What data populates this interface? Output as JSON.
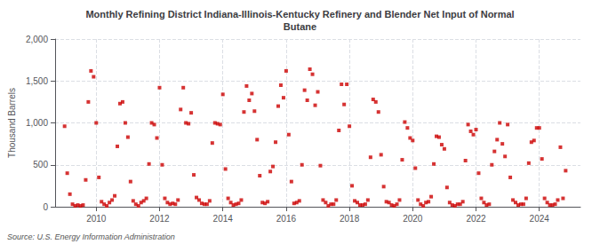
{
  "chart_data": {
    "type": "scatter",
    "title": "Monthly Refining District Indiana-Illinois-Kentucky Refinery and Blender Net Input of Normal\nButane",
    "ylabel": "Thousand Barrels",
    "annotations": [
      "Source: U.S. Energy Information Administration"
    ],
    "color": "#cc0000",
    "marker": "square",
    "grid": true,
    "xlim": [
      2008.7,
      2025.3
    ],
    "xticks": [
      2010,
      2012,
      2014,
      2016,
      2018,
      2020,
      2022,
      2024
    ],
    "ylim": [
      0,
      2000
    ],
    "yticks": [
      0,
      500,
      {
        "value": 1000,
        "label": "1,000"
      },
      {
        "value": 1500,
        "label": "1,500"
      },
      {
        "value": 2000,
        "label": "2,000"
      }
    ],
    "x": [
      2009.0,
      2009.083,
      2009.167,
      2009.25,
      2009.333,
      2009.417,
      2009.5,
      2009.583,
      2009.667,
      2009.75,
      2009.833,
      2009.917,
      2010.0,
      2010.083,
      2010.167,
      2010.25,
      2010.333,
      2010.417,
      2010.5,
      2010.583,
      2010.667,
      2010.75,
      2010.833,
      2010.917,
      2011.0,
      2011.083,
      2011.167,
      2011.25,
      2011.333,
      2011.417,
      2011.5,
      2011.583,
      2011.667,
      2011.75,
      2011.833,
      2011.917,
      2012.0,
      2012.083,
      2012.167,
      2012.25,
      2012.333,
      2012.417,
      2012.5,
      2012.583,
      2012.667,
      2012.75,
      2012.833,
      2012.917,
      2013.0,
      2013.083,
      2013.167,
      2013.25,
      2013.333,
      2013.417,
      2013.5,
      2013.583,
      2013.667,
      2013.75,
      2013.833,
      2013.917,
      2014.0,
      2014.083,
      2014.167,
      2014.25,
      2014.333,
      2014.417,
      2014.5,
      2014.583,
      2014.667,
      2014.75,
      2014.833,
      2014.917,
      2015.0,
      2015.083,
      2015.167,
      2015.25,
      2015.333,
      2015.417,
      2015.5,
      2015.583,
      2015.667,
      2015.75,
      2015.833,
      2015.917,
      2016.0,
      2016.083,
      2016.167,
      2016.25,
      2016.333,
      2016.417,
      2016.5,
      2016.583,
      2016.667,
      2016.75,
      2016.833,
      2016.917,
      2017.0,
      2017.083,
      2017.167,
      2017.25,
      2017.333,
      2017.417,
      2017.5,
      2017.583,
      2017.667,
      2017.75,
      2017.833,
      2017.917,
      2018.0,
      2018.083,
      2018.167,
      2018.25,
      2018.333,
      2018.417,
      2018.5,
      2018.583,
      2018.667,
      2018.75,
      2018.833,
      2018.917,
      2019.0,
      2019.083,
      2019.167,
      2019.25,
      2019.333,
      2019.417,
      2019.5,
      2019.583,
      2019.667,
      2019.75,
      2019.833,
      2019.917,
      2020.0,
      2020.083,
      2020.167,
      2020.25,
      2020.333,
      2020.417,
      2020.5,
      2020.583,
      2020.667,
      2020.75,
      2020.833,
      2020.917,
      2021.0,
      2021.083,
      2021.167,
      2021.25,
      2021.333,
      2021.417,
      2021.5,
      2021.583,
      2021.667,
      2021.75,
      2021.833,
      2021.917,
      2022.0,
      2022.083,
      2022.167,
      2022.25,
      2022.333,
      2022.417,
      2022.5,
      2022.583,
      2022.667,
      2022.75,
      2022.833,
      2022.917,
      2023.0,
      2023.083,
      2023.167,
      2023.25,
      2023.333,
      2023.417,
      2023.5,
      2023.583,
      2023.667,
      2023.75,
      2023.833,
      2023.917,
      2024.0,
      2024.083,
      2024.167,
      2024.25,
      2024.333,
      2024.417,
      2024.5,
      2024.583,
      2024.667,
      2024.75,
      2024.833
    ],
    "values": [
      960,
      400,
      150,
      30,
      10,
      20,
      10,
      20,
      320,
      1250,
      1620,
      1550,
      1000,
      350,
      60,
      30,
      10,
      50,
      80,
      130,
      720,
      1230,
      1250,
      1000,
      830,
      300,
      70,
      30,
      10,
      50,
      70,
      100,
      510,
      1000,
      980,
      820,
      1420,
      500,
      100,
      50,
      30,
      40,
      30,
      80,
      1160,
      1420,
      1000,
      990,
      1120,
      380,
      110,
      80,
      40,
      30,
      30,
      70,
      760,
      1000,
      990,
      980,
      1340,
      450,
      100,
      50,
      20,
      30,
      40,
      80,
      1130,
      1440,
      1270,
      1350,
      1140,
      800,
      370,
      50,
      40,
      60,
      420,
      480,
      770,
      1200,
      1450,
      1300,
      1620,
      860,
      300,
      40,
      50,
      70,
      500,
      1390,
      1270,
      1640,
      1580,
      1210,
      1370,
      490,
      80,
      50,
      10,
      30,
      30,
      80,
      910,
      1460,
      1220,
      1460,
      960,
      250,
      70,
      50,
      20,
      20,
      30,
      80,
      590,
      1280,
      1250,
      1130,
      620,
      240,
      60,
      50,
      20,
      10,
      30,
      80,
      560,
      1010,
      940,
      820,
      790,
      460,
      80,
      30,
      10,
      50,
      60,
      120,
      510,
      840,
      830,
      740,
      690,
      230,
      50,
      20,
      10,
      30,
      30,
      60,
      550,
      980,
      900,
      860,
      920,
      400,
      100,
      50,
      20,
      30,
      500,
      660,
      800,
      1000,
      750,
      600,
      980,
      350,
      80,
      50,
      20,
      30,
      30,
      100,
      520,
      770,
      790,
      940,
      940,
      570,
      100,
      50,
      20,
      20,
      30,
      80,
      710,
      100,
      430
    ]
  }
}
